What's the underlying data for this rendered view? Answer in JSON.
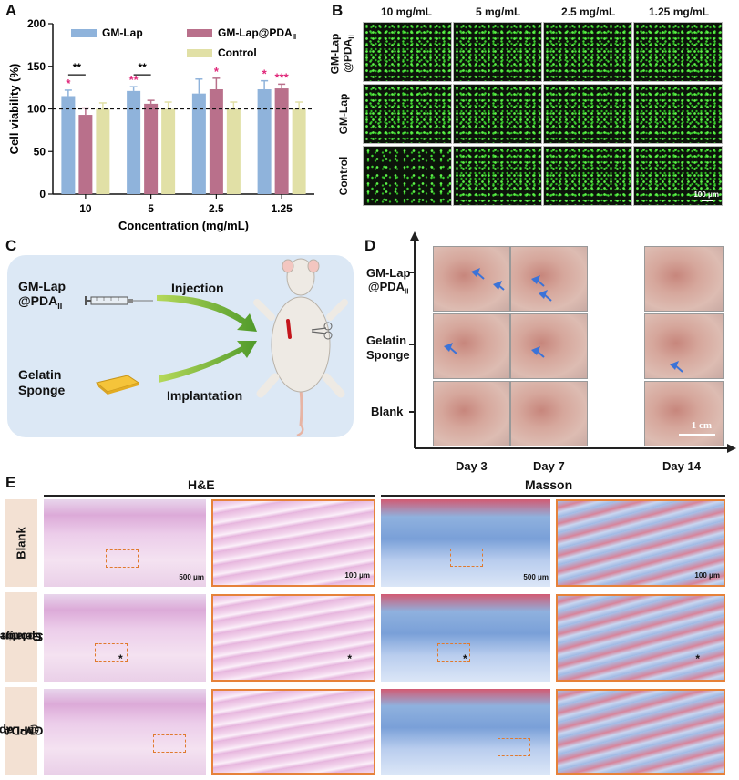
{
  "panel_labels": {
    "a": "A",
    "b": "B",
    "c": "C",
    "d": "D",
    "e": "E"
  },
  "chart_data": {
    "type": "bar",
    "title": "",
    "xlabel": "Concentration (mg/mL)",
    "ylabel": "Cell viability (%)",
    "ylim": [
      0,
      200
    ],
    "yticks": [
      "0",
      "50",
      "100",
      "150",
      "200"
    ],
    "categories": [
      "10",
      "5",
      "2.5",
      "1.25"
    ],
    "series": [
      {
        "name": "GM-Lap",
        "color": "#8fb3db",
        "values": [
          115,
          121,
          118,
          123
        ],
        "errors": [
          7,
          5,
          17,
          10
        ]
      },
      {
        "name": "GM-Lap@PDA",
        "name_sub": "II",
        "color": "#b9708b",
        "values": [
          93,
          106,
          123,
          124
        ],
        "errors": [
          8,
          4,
          13,
          5
        ]
      },
      {
        "name": "Control",
        "color": "#e1e0a6",
        "values": [
          100,
          100,
          100,
          100
        ],
        "errors": [
          7,
          8,
          8,
          8
        ]
      }
    ],
    "reference_line": 100,
    "significance": {
      "pair_marks": [
        "**",
        "**"
      ],
      "above_bars": [
        {
          "cat": 0,
          "series": 0,
          "text": "*"
        },
        {
          "cat": 0,
          "series": 1,
          "text": ""
        },
        {
          "cat": 1,
          "series": 0,
          "text": "**"
        },
        {
          "cat": 2,
          "series": 1,
          "text": "*"
        },
        {
          "cat": 3,
          "series": 0,
          "text": "*"
        },
        {
          "cat": 3,
          "series": 1,
          "text": "***"
        }
      ]
    }
  },
  "panel_b": {
    "columns": [
      "10 mg/mL",
      "5 mg/mL",
      "2.5 mg/mL",
      "1.25 mg/mL"
    ],
    "rows": [
      {
        "l1": "GM-Lap",
        "l2": "@PDA",
        "sub": "II"
      },
      {
        "l1": "GM-Lap",
        "l2": "",
        "sub": ""
      },
      {
        "l1": "Control",
        "l2": "",
        "sub": ""
      }
    ],
    "scale": "100 μm"
  },
  "panel_c": {
    "item1_l1": "GM-Lap",
    "item1_l2": "@PDA",
    "item1_sub": "II",
    "item2_l1": "Gelatin",
    "item2_l2": "Sponge",
    "arrow1": "Injection",
    "arrow2": "Implantation"
  },
  "panel_d": {
    "rows": [
      {
        "l1": "GM-Lap",
        "l2": "@PDA",
        "sub": "II"
      },
      {
        "l1": "Gelatin",
        "l2": "Sponge",
        "sub": ""
      },
      {
        "l1": "Blank",
        "l2": "",
        "sub": ""
      }
    ],
    "days": [
      "Day 3",
      "Day 7",
      "Day 14"
    ],
    "scale": "1 cm"
  },
  "panel_e": {
    "he": "H&E",
    "masson": "Masson",
    "rows": [
      {
        "l1": "Blank",
        "l2": "",
        "sub": ""
      },
      {
        "l1": "Gelatin",
        "l2": "Sponge",
        "sub": ""
      },
      {
        "l1": "GM-Lap",
        "l2": "@PDA",
        "sub": "II"
      }
    ],
    "scale_low": "500 μm",
    "scale_high": "100 μm",
    "asterisk": "*"
  }
}
